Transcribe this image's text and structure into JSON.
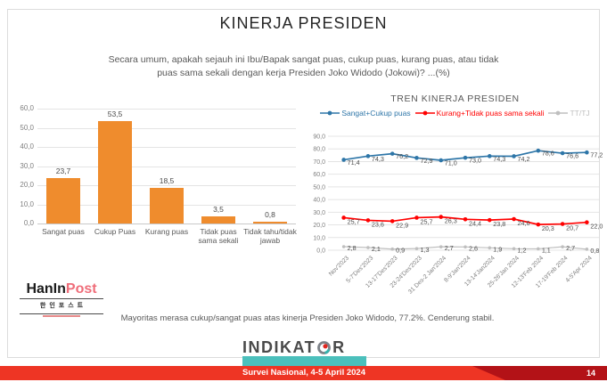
{
  "slide": {
    "title": "KINERJA PRESIDEN",
    "subtitle_lines": [
      "Secara umum, apakah sejauh ini Ibu/Bapak sangat puas, cukup puas, kurang puas, atau tidak",
      "puas sama sekali dengan kerja Presiden Joko Widodo (Jokowi)? ...(%)"
    ],
    "conclusion": "Mayoritas merasa cukup/sangat puas atas kinerja Presiden Joko Widodo, 77.2%. Cenderung stabil."
  },
  "chart_data": [
    {
      "type": "bar",
      "title": "",
      "categories": [
        "Sangat puas",
        "Cukup Puas",
        "Kurang puas",
        "Tidak puas sama sekali",
        "Tidak tahu/tidak jawab"
      ],
      "values": [
        23.7,
        53.5,
        18.5,
        3.5,
        0.8
      ],
      "ylim": [
        0,
        60
      ],
      "y_tick_step": 10,
      "grid": true,
      "bar_color": "#EF8C2D",
      "value_label_format": "comma-decimal"
    },
    {
      "type": "line",
      "title": "TREN KINERJA PRESIDEN",
      "x": [
        "Nov'2023",
        "5-7'Des'2023",
        "13-17'Des'2023",
        "23-24'Des'2023",
        "31 Des-2 Jan'2024",
        "8-9'Jan'2024",
        "13-14'Jan2024",
        "25-26'Jan 2024",
        "12-13'Feb 2024",
        "17-19'Feb 2024",
        "4-5'Apr 2024"
      ],
      "series": [
        {
          "name": "Sangat+Cukup puas",
          "color": "#2E76A8",
          "values": [
            71.4,
            74.3,
            76.2,
            72.9,
            71.0,
            73.0,
            74.3,
            74.2,
            78.6,
            76.6,
            77.2
          ]
        },
        {
          "name": "Kurang+Tidak puas sama sekali",
          "color": "#FF0000",
          "values": [
            25.7,
            23.6,
            22.9,
            25.7,
            26.3,
            24.4,
            23.8,
            24.6,
            20.3,
            20.7,
            22.0
          ]
        },
        {
          "name": "TT/TJ",
          "color": "#BFBFBF",
          "values": [
            2.8,
            2.1,
            0.9,
            1.3,
            2.7,
            2.6,
            1.9,
            1.2,
            1.1,
            2.7,
            0.8
          ]
        }
      ],
      "ylim": [
        0,
        90
      ],
      "y_tick_step": 10,
      "grid": true,
      "legend_position": "top",
      "value_label_format": "comma-decimal"
    }
  ],
  "logos": {
    "haninpost": {
      "text_black": "HanIn",
      "text_pink": "Post",
      "korean": "한인포스트"
    },
    "indikator": {
      "text_left": "INDIKAT",
      "text_right": "R"
    }
  },
  "footer": {
    "survey_label": "Survei Nasional, 4-5 April 2024",
    "page_number": "14"
  },
  "colors": {
    "bar_orange": "#EF8C2D",
    "line_blue": "#2E76A8",
    "line_red": "#FF0000",
    "line_gray": "#BFBFBF",
    "footer_red": "#EE3524",
    "footer_dark_red": "#B31217",
    "teal_accent": "#4BC0BC",
    "logo_pink": "#EF6D79"
  }
}
